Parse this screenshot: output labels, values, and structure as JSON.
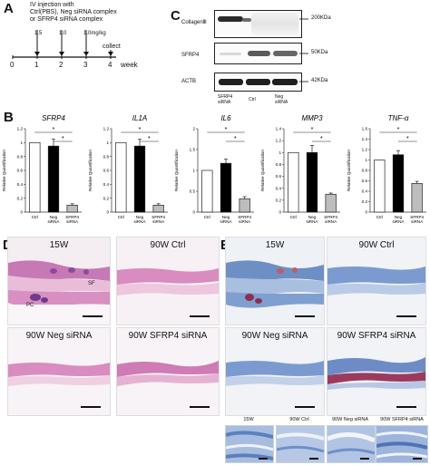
{
  "panel_labels": {
    "a": "A",
    "b": "B",
    "c": "C",
    "d": "D",
    "e": "E"
  },
  "timeline": {
    "header": [
      "IV injection with",
      "Ctrl(PBS), Neg siRNA complex",
      "or SFRP4 siRNA complex"
    ],
    "doses": [
      "1.5",
      "1.0",
      "1.0mg/kg"
    ],
    "collect": "collect",
    "ticks": [
      "0",
      "1",
      "2",
      "3",
      "4"
    ],
    "unit": "week"
  },
  "blot": {
    "rows": [
      {
        "label": "CollagenⅢ",
        "marker": "200KDa"
      },
      {
        "label": "SFRP4",
        "marker": "50KDa"
      },
      {
        "label": "ACTB",
        "marker": "42KDa"
      }
    ],
    "lanes": [
      {
        "line1": "SFRP4",
        "line2": "siRNA"
      },
      {
        "line1": "Ctrl",
        "line2": ""
      },
      {
        "line1": "Neg",
        "line2": "siRNA"
      }
    ]
  },
  "chart_data": [
    {
      "type": "bar",
      "title": "SFRP4",
      "ylabel": "Relative Quantification",
      "ylim": [
        0,
        1.2
      ],
      "yticks": [
        "0",
        "0.2",
        "0.4",
        "0.6",
        "0.8",
        "1",
        "1.2"
      ],
      "categories": [
        "Ctrl",
        "Neg siRNA",
        "SFRP4 siRNA"
      ],
      "values": [
        1.0,
        0.95,
        0.1
      ],
      "errors": [
        0.0,
        0.1,
        0.02
      ],
      "colors": [
        "#ffffff",
        "#000000",
        "#bdbdbd"
      ],
      "sig": [
        "*",
        "*"
      ]
    },
    {
      "type": "bar",
      "title": "IL1A",
      "ylabel": "Relative Quantification",
      "ylim": [
        0,
        1.2
      ],
      "yticks": [
        "0",
        "0.2",
        "0.4",
        "0.6",
        "0.8",
        "1",
        "1.2"
      ],
      "categories": [
        "Ctrl",
        "Neg siRNA",
        "SFRP4 siRNA"
      ],
      "values": [
        1.0,
        0.95,
        0.1
      ],
      "errors": [
        0.0,
        0.1,
        0.02
      ],
      "colors": [
        "#ffffff",
        "#000000",
        "#bdbdbd"
      ],
      "sig": [
        "*",
        "*"
      ]
    },
    {
      "type": "bar",
      "title": "IL6",
      "ylabel": "Relative Quantification",
      "ylim": [
        0,
        2
      ],
      "yticks": [
        "0",
        "0.5",
        "1",
        "1.5",
        "2"
      ],
      "categories": [
        "Ctrl",
        "Neg siRNA",
        "SFRP4 siRNA"
      ],
      "values": [
        1.0,
        1.17,
        0.32
      ],
      "errors": [
        0.0,
        0.1,
        0.05
      ],
      "colors": [
        "#ffffff",
        "#000000",
        "#bdbdbd"
      ],
      "sig": [
        "*",
        "*"
      ]
    },
    {
      "type": "bar",
      "title": "MMP3",
      "ylabel": "Relative Quantification",
      "ylim": [
        0,
        1.4
      ],
      "yticks": [
        "0",
        "0.2",
        "0.4",
        "0.6",
        "0.8",
        "1",
        "1.2",
        "1.4"
      ],
      "categories": [
        "Ctrl",
        "Neg siRNA",
        "SFRP4 siRNA"
      ],
      "values": [
        1.0,
        1.0,
        0.3
      ],
      "errors": [
        0.0,
        0.12,
        0.02
      ],
      "colors": [
        "#ffffff",
        "#000000",
        "#bdbdbd"
      ],
      "sig": [
        "*",
        "*"
      ]
    },
    {
      "type": "bar",
      "title": "TNF-α",
      "ylabel": "Relative Quantification",
      "ylim": [
        0,
        1.6
      ],
      "yticks": [
        "0",
        "0.2",
        "0.4",
        "0.6",
        "0.8",
        "1",
        "1.2",
        "1.4",
        "1.6"
      ],
      "categories": [
        "Ctrl",
        "Neg siRNA",
        "SFRP4 siRNA"
      ],
      "values": [
        1.0,
        1.1,
        0.55
      ],
      "errors": [
        0.0,
        0.08,
        0.04
      ],
      "colors": [
        "#ffffff",
        "#000000",
        "#bdbdbd"
      ],
      "sig": [
        "*",
        "*"
      ]
    }
  ],
  "panel_d": {
    "images": [
      {
        "label": "15W",
        "annotations": [
          "SF",
          "PC"
        ]
      },
      {
        "label": "90W Ctrl"
      },
      {
        "label": "90W Neg siRNA"
      },
      {
        "label": "90W SFRP4 siRNA"
      }
    ]
  },
  "panel_e": {
    "images": [
      {
        "label": "15W"
      },
      {
        "label": "90W Ctrl"
      },
      {
        "label": "90W Neg siRNA"
      },
      {
        "label": "90W SFRP4 siRNA"
      }
    ],
    "zoom_labels": [
      "15W",
      "90W Ctrl",
      "90W Neg siRNA",
      "90W SFRP4 siRNA"
    ]
  }
}
